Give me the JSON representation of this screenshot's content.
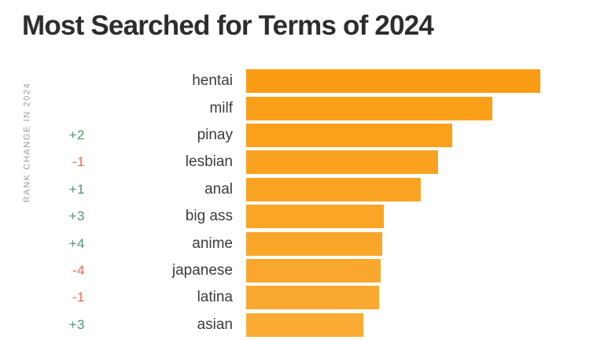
{
  "title": "Most Searched for Terms of 2024",
  "axis_label": "RANK CHANGE IN 2024",
  "colors": {
    "background": "#FFFFFF",
    "title": "#2D2D2D",
    "term_label": "#3C3C3C",
    "axis_label": "#9B9B9B",
    "rank_up": "#4E9A6F",
    "rank_down": "#F0674F",
    "bar_orange_top": "#FA9D14",
    "bar_orange_bottom": "#FBAB34"
  },
  "chart_data": {
    "type": "bar",
    "orientation": "horizontal",
    "title": "Most Searched for Terms of 2024",
    "axis_label": "RANK CHANGE IN 2024",
    "categories": [
      "hentai",
      "milf",
      "pinay",
      "lesbian",
      "anal",
      "big ass",
      "anime",
      "japanese",
      "latina",
      "asian"
    ],
    "values": [
      100,
      83.7,
      70.1,
      65.2,
      59.4,
      46.8,
      46.3,
      45.7,
      45.2,
      39.8
    ],
    "values_note": "relative bar length, longest bar (hentai) = 100",
    "rank_changes": [
      "",
      "",
      "+2",
      "-1",
      "+1",
      "+3",
      "+4",
      "-4",
      "-1",
      "+3"
    ],
    "bar_colors": [
      "#FA9D14",
      "#FA9F18",
      "#FAA01B",
      "#FAA21F",
      "#FAA322",
      "#FAA526",
      "#FAA629",
      "#FAA82D",
      "#FAA930",
      "#FBAB34"
    ],
    "xlim": [
      0,
      100
    ],
    "grid": false,
    "legend": false
  }
}
